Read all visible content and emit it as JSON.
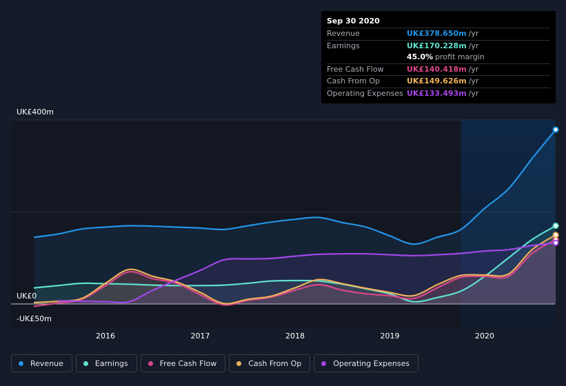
{
  "tooltip": {
    "date": "Sep 30 2020",
    "rows": [
      {
        "label": "Revenue",
        "value": "UK£378.650m",
        "unit": "/yr",
        "color": "#2394e6"
      },
      {
        "label": "Earnings",
        "value": "UK£170.228m",
        "unit": "/yr",
        "color": "#5fe0cd"
      },
      {
        "label": "",
        "value": "45.0%",
        "unit": "profit margin",
        "color": "#ffffff"
      },
      {
        "label": "Free Cash Flow",
        "value": "UK£140.418m",
        "unit": "/yr",
        "color": "#d9478a"
      },
      {
        "label": "Cash From Op",
        "value": "UK£149.626m",
        "unit": "/yr",
        "color": "#f0b05c"
      },
      {
        "label": "Operating Expenses",
        "value": "UK£133.493m",
        "unit": "/yr",
        "color": "#a347e8"
      }
    ]
  },
  "chart_data": {
    "type": "line",
    "y_axis_labels": {
      "top": "UK£400m",
      "zero": "UK£0",
      "bottom": "-UK£50m"
    },
    "ylim": [
      -50,
      400
    ],
    "xlim": [
      2015.15,
      2020.75
    ],
    "x_ticks": [
      "2016",
      "2017",
      "2018",
      "2019",
      "2020"
    ],
    "x_tick_values": [
      2016,
      2017,
      2018,
      2019,
      2020
    ],
    "highlight_start": 2019.75,
    "series": [
      {
        "name": "Revenue",
        "color": "#2394e6",
        "points": [
          [
            2015.25,
            145
          ],
          [
            2015.5,
            152
          ],
          [
            2015.75,
            163
          ],
          [
            2016,
            167
          ],
          [
            2016.25,
            170
          ],
          [
            2016.5,
            169
          ],
          [
            2016.75,
            167
          ],
          [
            2017,
            165
          ],
          [
            2017.25,
            162
          ],
          [
            2017.5,
            170
          ],
          [
            2017.75,
            178
          ],
          [
            2018,
            184
          ],
          [
            2018.25,
            188
          ],
          [
            2018.5,
            177
          ],
          [
            2018.75,
            167
          ],
          [
            2019,
            148
          ],
          [
            2019.25,
            130
          ],
          [
            2019.5,
            145
          ],
          [
            2019.75,
            162
          ],
          [
            2020,
            208
          ],
          [
            2020.25,
            250
          ],
          [
            2020.5,
            316
          ],
          [
            2020.75,
            379
          ]
        ]
      },
      {
        "name": "Earnings",
        "color": "#5fe0cd",
        "points": [
          [
            2015.25,
            35
          ],
          [
            2015.5,
            40
          ],
          [
            2015.75,
            45
          ],
          [
            2016,
            44
          ],
          [
            2016.25,
            43
          ],
          [
            2016.5,
            41
          ],
          [
            2016.75,
            40
          ],
          [
            2017,
            40
          ],
          [
            2017.25,
            41
          ],
          [
            2017.5,
            45
          ],
          [
            2017.75,
            50
          ],
          [
            2018,
            51
          ],
          [
            2018.25,
            50
          ],
          [
            2018.5,
            43
          ],
          [
            2018.75,
            33
          ],
          [
            2019,
            22
          ],
          [
            2019.25,
            5
          ],
          [
            2019.5,
            14
          ],
          [
            2019.75,
            28
          ],
          [
            2020,
            60
          ],
          [
            2020.25,
            100
          ],
          [
            2020.5,
            140
          ],
          [
            2020.75,
            170
          ]
        ]
      },
      {
        "name": "Free Cash Flow",
        "color": "#d9478a",
        "points": [
          [
            2015.25,
            -5
          ],
          [
            2015.5,
            2
          ],
          [
            2015.75,
            10
          ],
          [
            2016,
            40
          ],
          [
            2016.25,
            70
          ],
          [
            2016.5,
            55
          ],
          [
            2016.75,
            45
          ],
          [
            2017,
            20
          ],
          [
            2017.25,
            -2
          ],
          [
            2017.5,
            8
          ],
          [
            2017.75,
            15
          ],
          [
            2018,
            30
          ],
          [
            2018.25,
            42
          ],
          [
            2018.5,
            30
          ],
          [
            2018.75,
            22
          ],
          [
            2019,
            18
          ],
          [
            2019.25,
            12
          ],
          [
            2019.5,
            35
          ],
          [
            2019.75,
            58
          ],
          [
            2020,
            60
          ],
          [
            2020.25,
            60
          ],
          [
            2020.5,
            110
          ],
          [
            2020.75,
            140
          ]
        ]
      },
      {
        "name": "Cash From Op",
        "color": "#f0b05c",
        "points": [
          [
            2015.25,
            3
          ],
          [
            2015.5,
            6
          ],
          [
            2015.75,
            12
          ],
          [
            2016,
            45
          ],
          [
            2016.25,
            75
          ],
          [
            2016.5,
            60
          ],
          [
            2016.75,
            48
          ],
          [
            2017,
            25
          ],
          [
            2017.25,
            1
          ],
          [
            2017.5,
            10
          ],
          [
            2017.75,
            17
          ],
          [
            2018,
            35
          ],
          [
            2018.25,
            53
          ],
          [
            2018.5,
            44
          ],
          [
            2018.75,
            34
          ],
          [
            2019,
            25
          ],
          [
            2019.25,
            18
          ],
          [
            2019.5,
            42
          ],
          [
            2019.75,
            62
          ],
          [
            2020,
            63
          ],
          [
            2020.25,
            65
          ],
          [
            2020.5,
            118
          ],
          [
            2020.75,
            150
          ]
        ]
      },
      {
        "name": "Operating Expenses",
        "color": "#a347e8",
        "points": [
          [
            2015.5,
            7
          ],
          [
            2015.75,
            6
          ],
          [
            2016,
            5
          ],
          [
            2016.25,
            5
          ],
          [
            2016.5,
            30
          ],
          [
            2016.75,
            52
          ],
          [
            2017,
            73
          ],
          [
            2017.25,
            96
          ],
          [
            2017.5,
            98
          ],
          [
            2017.75,
            99
          ],
          [
            2018,
            104
          ],
          [
            2018.25,
            108
          ],
          [
            2018.5,
            109
          ],
          [
            2018.75,
            109
          ],
          [
            2019,
            107
          ],
          [
            2019.25,
            105
          ],
          [
            2019.5,
            107
          ],
          [
            2019.75,
            110
          ],
          [
            2020,
            115
          ],
          [
            2020.25,
            118
          ],
          [
            2020.5,
            127
          ],
          [
            2020.75,
            133
          ]
        ]
      }
    ]
  },
  "legend": {
    "items": [
      {
        "label": "Revenue",
        "color": "#2394e6"
      },
      {
        "label": "Earnings",
        "color": "#5fe0cd"
      },
      {
        "label": "Free Cash Flow",
        "color": "#d9478a"
      },
      {
        "label": "Cash From Op",
        "color": "#f0b05c"
      },
      {
        "label": "Operating Expenses",
        "color": "#a347e8"
      }
    ]
  }
}
